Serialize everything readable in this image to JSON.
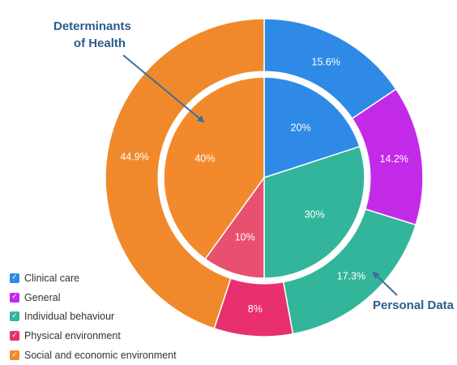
{
  "chart_data": {
    "type": "pie",
    "title": "",
    "categories": [
      "Clinical care",
      "General",
      "Individual behaviour",
      "Physical environment",
      "Social and economic environment"
    ],
    "colors": [
      "#2e8ae6",
      "#c32ae8",
      "#33b59b",
      "#e8306f",
      "#f0892b"
    ],
    "inner_colors": [
      "#2e8ae6",
      "#c32ae8",
      "#33b59b",
      "#e8506f",
      "#f28a2d"
    ],
    "series": [
      {
        "name": "Personal Data",
        "ring": "outer",
        "values": [
          15.6,
          14.2,
          17.3,
          8,
          44.9
        ],
        "labels": [
          "15.6%",
          "14.2%",
          "17.3%",
          "8%",
          "44.9%"
        ]
      },
      {
        "name": "Determinants of Health",
        "ring": "inner",
        "values": [
          20,
          0,
          30,
          10,
          40
        ],
        "labels": [
          "20%",
          "",
          "30%",
          "10%",
          "40%"
        ]
      }
    ],
    "annotations": [
      {
        "text_lines": [
          "Determinants",
          "of Health"
        ],
        "points_to": "inner ring"
      },
      {
        "text_lines": [
          "Personal Data"
        ],
        "points_to": "outer ring"
      }
    ],
    "legend": {
      "position": "bottom-left",
      "checked": true
    },
    "annotation_color": "#2d5c8a"
  }
}
